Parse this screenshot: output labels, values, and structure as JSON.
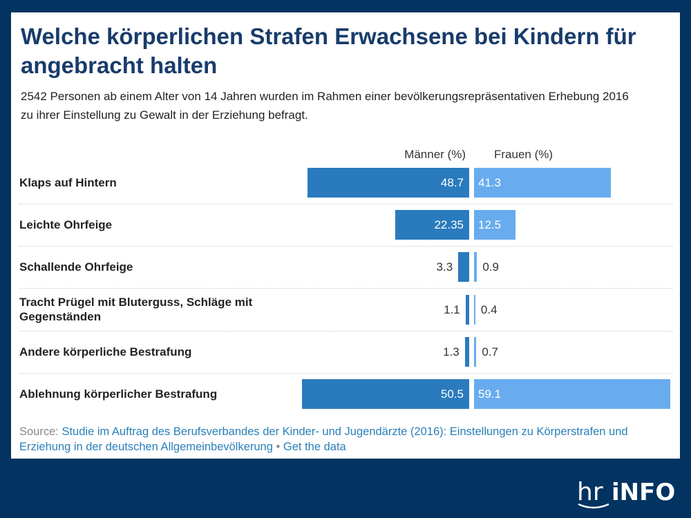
{
  "title": "Welche körperlichen Strafen Erwachsene bei Kindern für angebracht halten",
  "subtitle": "2542 Personen ab einem Alter von 14 Jahren wurden im Rahmen einer bevölkerungsrepräsentativen Erhebung 2016 zu ihrer Einstellung zu Gewalt in der Erziehung befragt.",
  "source": {
    "label": "Source:",
    "text": "Studie im Auftrag des Berufsverbandes der Kinder- und Jugendärzte (2016): Einstellungen zu Körperstrafen und Erziehung in der deutschen Allgemeinbevölkerung",
    "separator": "•",
    "get_data": "Get the data"
  },
  "logo": {
    "text": "hr iNFO"
  },
  "chart_data": {
    "type": "bar",
    "orientation": "horizontal",
    "layout": "butterfly",
    "categories": [
      "Klaps auf Hintern",
      "Leichte Ohrfeige",
      "Schallende Ohrfeige",
      "Tracht Prügel mit Bluterguss, Schläge mit Gegenständen",
      "Andere körperliche Bestrafung",
      "Ablehnung körperlicher Bestrafung"
    ],
    "series": [
      {
        "name": "Männer (%)",
        "color": "#2a7bbd",
        "values": [
          48.7,
          22.35,
          3.3,
          1.1,
          1.3,
          50.5
        ],
        "labels": [
          "48.7",
          "22.35",
          "3.3",
          "1.1",
          "1.3",
          "50.5"
        ]
      },
      {
        "name": "Frauen (%)",
        "color": "#68acef",
        "values": [
          41.3,
          12.5,
          0.9,
          0.4,
          0.7,
          59.1
        ],
        "labels": [
          "41.3",
          "12.5",
          "0.9",
          "0.4",
          "0.7",
          "59.1"
        ]
      }
    ],
    "grid": false
  },
  "colors": {
    "background": "#023361",
    "title": "#183c6b",
    "link": "#2a7fb8"
  }
}
